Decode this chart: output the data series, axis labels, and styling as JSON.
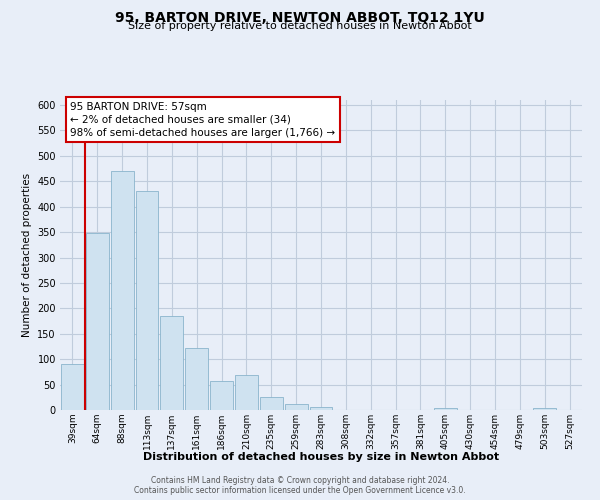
{
  "title": "95, BARTON DRIVE, NEWTON ABBOT, TQ12 1YU",
  "subtitle": "Size of property relative to detached houses in Newton Abbot",
  "xlabel": "Distribution of detached houses by size in Newton Abbot",
  "ylabel": "Number of detached properties",
  "bar_labels": [
    "39sqm",
    "64sqm",
    "88sqm",
    "113sqm",
    "137sqm",
    "161sqm",
    "186sqm",
    "210sqm",
    "235sqm",
    "259sqm",
    "283sqm",
    "308sqm",
    "332sqm",
    "357sqm",
    "381sqm",
    "405sqm",
    "430sqm",
    "454sqm",
    "479sqm",
    "503sqm",
    "527sqm"
  ],
  "bar_values": [
    90,
    348,
    470,
    430,
    185,
    122,
    57,
    68,
    25,
    12,
    6,
    0,
    0,
    0,
    0,
    3,
    0,
    0,
    0,
    3,
    0
  ],
  "bar_color": "#cfe2f0",
  "bar_edge_color": "#8ab4cc",
  "vline_color": "#cc0000",
  "annotation_title": "95 BARTON DRIVE: 57sqm",
  "annotation_line1": "← 2% of detached houses are smaller (34)",
  "annotation_line2": "98% of semi-detached houses are larger (1,766) →",
  "annotation_border_color": "#cc0000",
  "ylim": [
    0,
    610
  ],
  "yticks": [
    0,
    50,
    100,
    150,
    200,
    250,
    300,
    350,
    400,
    450,
    500,
    550,
    600
  ],
  "footer_line1": "Contains HM Land Registry data © Crown copyright and database right 2024.",
  "footer_line2": "Contains public sector information licensed under the Open Government Licence v3.0.",
  "bg_color": "#e8eef8",
  "grid_color": "#c0ccdc"
}
